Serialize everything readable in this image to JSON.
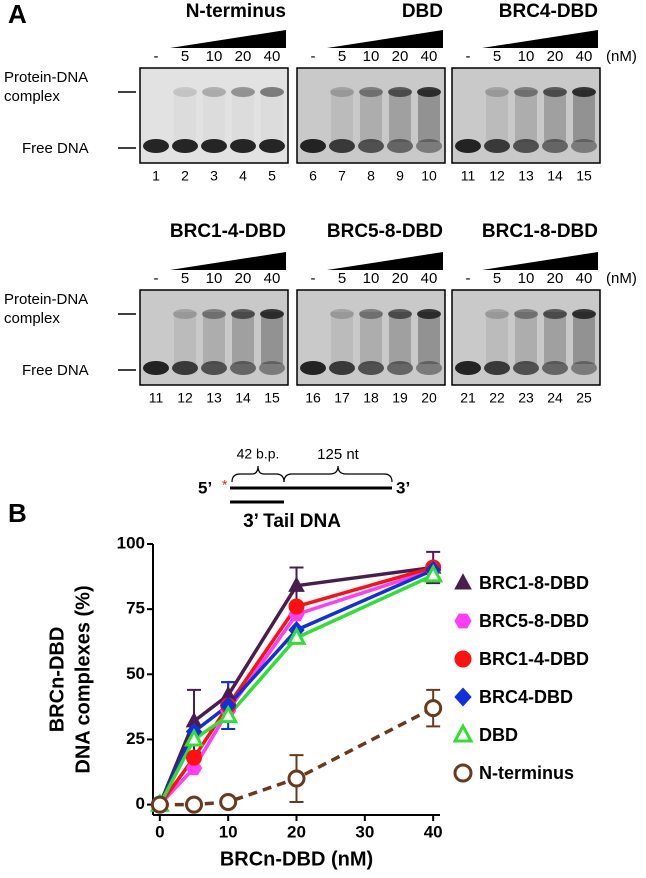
{
  "panel_a": {
    "label": "A",
    "concentrations": [
      "-",
      "5",
      "10",
      "20",
      "40"
    ],
    "unit": "(nM)",
    "band_labels": [
      "Protein-DNA",
      "complex",
      "Free DNA"
    ],
    "gels": [
      {
        "title": "N-terminus",
        "lanes": [
          1,
          2,
          3,
          4,
          5
        ]
      },
      {
        "title": "DBD",
        "lanes": [
          6,
          7,
          8,
          9,
          10
        ]
      },
      {
        "title": "BRC4-DBD",
        "lanes": [
          11,
          12,
          13,
          14,
          15
        ]
      },
      {
        "title": "BRC1-4-DBD",
        "lanes": [
          11,
          12,
          13,
          14,
          15
        ]
      },
      {
        "title": "BRC5-8-DBD",
        "lanes": [
          16,
          17,
          18,
          19,
          20
        ]
      },
      {
        "title": "BRC1-8-DBD",
        "lanes": [
          21,
          22,
          23,
          24,
          25
        ]
      }
    ]
  },
  "diagram": {
    "five_prime": "5’",
    "three_prime": "3’",
    "duplex": "42 b.p.",
    "tail": "125 nt",
    "title": "3’ Tail DNA"
  },
  "chart_data": {
    "type": "line",
    "panel_label": "B",
    "x_label": "BRCn-DBD (nM)",
    "y_label": [
      "BRCn-DBD",
      "DNA complexes (%)"
    ],
    "x": [
      0,
      5,
      10,
      20,
      40
    ],
    "xlim": [
      -1,
      41
    ],
    "xticks": [
      0,
      10,
      20,
      30,
      40
    ],
    "ylim": [
      -4,
      100
    ],
    "yticks": [
      0,
      25,
      50,
      75,
      100
    ],
    "legend": "right",
    "series": [
      {
        "name": "BRC1-8-DBD",
        "color": "#4a1d4f",
        "marker": "triangle",
        "filled": true,
        "values": [
          0,
          32,
          42,
          84,
          91
        ],
        "errors": [
          0,
          12,
          5,
          7,
          6
        ]
      },
      {
        "name": "BRC5-8-DBD",
        "color": "#ff3df5",
        "marker": "hexagon",
        "filled": true,
        "values": [
          0,
          14,
          36,
          73,
          90
        ]
      },
      {
        "name": "BRC1-4-DBD",
        "color": "#ff1010",
        "marker": "circle",
        "filled": true,
        "values": [
          0,
          18,
          38,
          76,
          91
        ]
      },
      {
        "name": "BRC4-DBD",
        "color": "#1030e0",
        "marker": "diamond",
        "filled": true,
        "values": [
          0,
          28,
          38,
          67,
          90
        ],
        "errors": [
          0,
          0,
          9,
          0,
          0
        ]
      },
      {
        "name": "DBD",
        "color": "#30e030",
        "marker": "triangle",
        "filled": false,
        "values": [
          0,
          25,
          34,
          64,
          88
        ]
      },
      {
        "name": "N-terminus",
        "color": "#6b3a1e",
        "marker": "circle",
        "filled": false,
        "dashed": true,
        "values": [
          0,
          0,
          1,
          10,
          37
        ],
        "errors": [
          0,
          0,
          0,
          9,
          7
        ]
      }
    ]
  }
}
